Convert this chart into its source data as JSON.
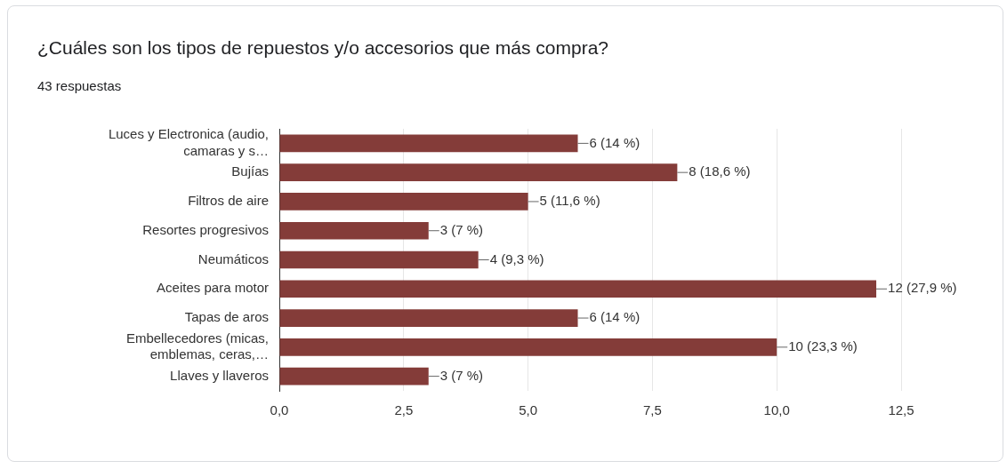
{
  "chart_data": {
    "type": "bar",
    "orientation": "horizontal",
    "title": "¿Cuáles son los tipos de repuestos y/o accesorios que más compra?",
    "subtitle": "43 respuestas",
    "categories": [
      "Luces y Electronica (audio, camaras y s…",
      "Bujías",
      "Filtros de aire",
      "Resortes progresivos",
      "Neumáticos",
      "Aceites para motor",
      "Tapas de aros",
      "Embellecedores (micas, emblemas, ceras,…",
      "Llaves y llaveros"
    ],
    "values": [
      6,
      8,
      5,
      3,
      4,
      12,
      6,
      10,
      3
    ],
    "value_labels": [
      "6 (14 %)",
      "8 (18,6 %)",
      "5 (11,6 %)",
      "3 (7 %)",
      "4 (9,3 %)",
      "12 (27,9 %)",
      "6 (14 %)",
      "10 (23,3 %)",
      "3 (7 %)"
    ],
    "color": "#843c39",
    "xlim": [
      0,
      12.5
    ],
    "xticks": [
      {
        "value": 0,
        "label": "0,0"
      },
      {
        "value": 2.5,
        "label": "2,5"
      },
      {
        "value": 5,
        "label": "5,0"
      },
      {
        "value": 7.5,
        "label": "7,5"
      },
      {
        "value": 10,
        "label": "10,0"
      },
      {
        "value": 12.5,
        "label": "12,5"
      }
    ],
    "grid": "x",
    "legend": false
  }
}
